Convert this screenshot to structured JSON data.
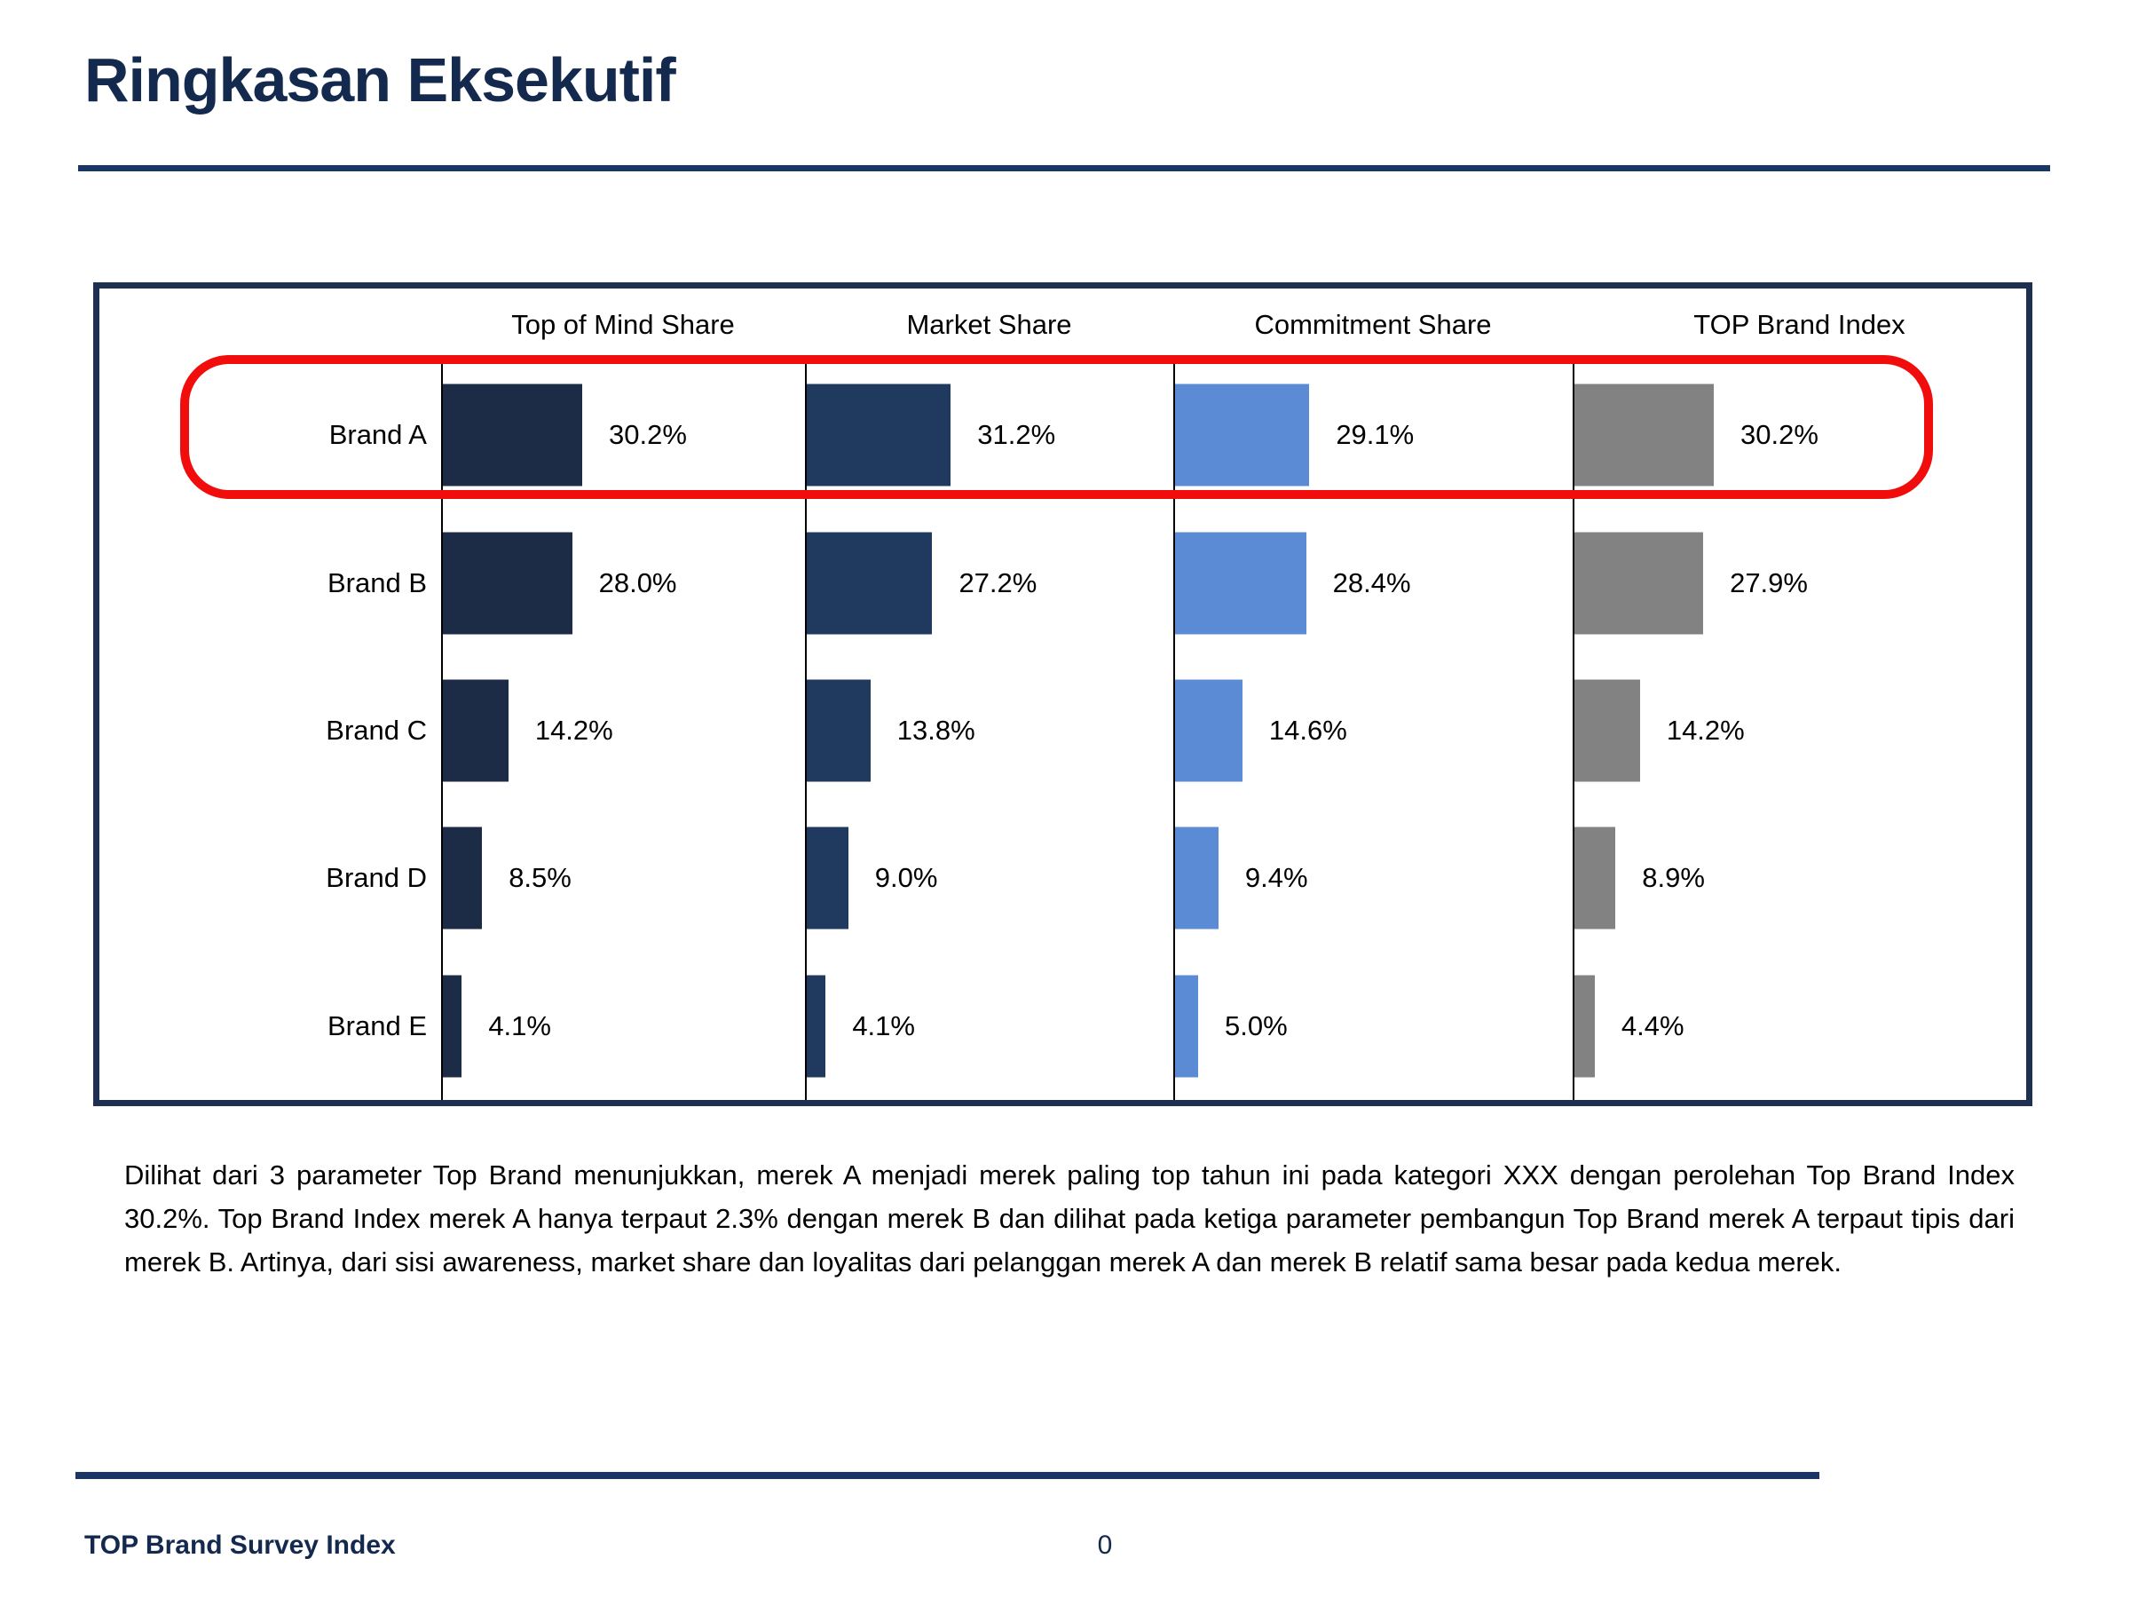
{
  "slide": {
    "title": "Ringkasan Eksekutif",
    "body_paragraph": "Dilihat dari 3 parameter Top Brand menunjukkan, merek A menjadi merek paling top tahun ini pada kategori XXX dengan perolehan Top Brand Index 30.2%. Top Brand Index merek A hanya terpaut 2.3% dengan merek B dan dilihat pada ketiga parameter pembangun Top Brand merek A terpaut tipis dari merek B. Artinya, dari sisi awareness, market share dan loyalitas dari pelanggan merek A dan merek B relatif sama besar pada kedua merek.",
    "footer_left": "TOP Brand Survey Index",
    "page_number": "0"
  },
  "colors": {
    "navy_text": "#13294E",
    "navy_line": "#1A3665",
    "panel_border": "#1E2F52",
    "axis": "#000000",
    "highlight_red": "#F20D0D",
    "bar_top_of_mind_share": "#1D2C46",
    "bar_market_share": "#1F3A5E",
    "bar_commitment_share": "#5B8BD5",
    "bar_top_brand_index": "#828282"
  },
  "chart_data": {
    "type": "bar",
    "orientation": "horizontal",
    "title": "",
    "categories": [
      "Brand A",
      "Brand B",
      "Brand C",
      "Brand D",
      "Brand E"
    ],
    "series": [
      {
        "name": "Top of Mind Share",
        "values": [
          30.2,
          28.0,
          14.2,
          8.5,
          4.1
        ]
      },
      {
        "name": "Market Share",
        "values": [
          31.2,
          27.2,
          13.8,
          9.0,
          4.1
        ]
      },
      {
        "name": "Commitment Share",
        "values": [
          29.1,
          28.4,
          14.6,
          9.4,
          5.0
        ]
      },
      {
        "name": "TOP Brand Index",
        "values": [
          30.2,
          27.9,
          14.2,
          8.9,
          4.4
        ]
      }
    ],
    "value_label_suffix": "%",
    "xlim": [
      0,
      60
    ],
    "grid": false,
    "legend": "none (panel headers act as series titles)",
    "annotation": "Brand A row outlined with red rounded rectangle"
  }
}
